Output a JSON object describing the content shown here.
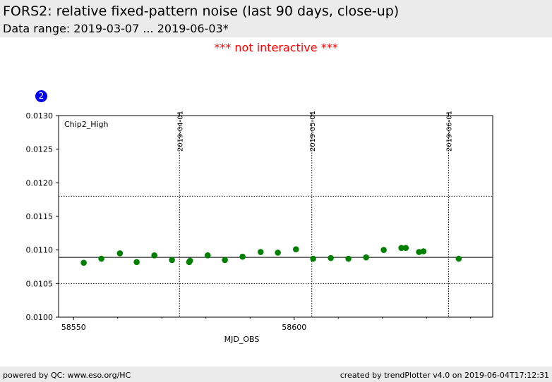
{
  "header": {
    "title": "FORS2: relative fixed-pattern noise (last 90 days, close-up)",
    "subtitle": "Data range: 2019-03-07 ... 2019-06-03*"
  },
  "notice": "*** not interactive ***",
  "badge": "2",
  "footer": {
    "left": "powered by QC: www.eso.org/HC",
    "right": "created by trendPlotter v4.0 on 2019-06-04T17:12:31"
  },
  "colors": {
    "points": "#008000",
    "badge": "#0000ee",
    "notice": "#ff0000"
  },
  "chart_data": {
    "type": "scatter",
    "panel_label": "Chip2_High",
    "xlabel": "MJD_OBS",
    "ylabel": "",
    "xlim": [
      58546.6,
      58645.0
    ],
    "ylim": [
      0.01,
      0.013
    ],
    "x_ticks": [
      58550,
      58600
    ],
    "y_ticks": [
      0.01,
      0.0105,
      0.011,
      0.0115,
      0.012,
      0.0125,
      0.013
    ],
    "y_tick_labels": [
      "0.0100",
      "0.0105",
      "0.0110",
      "0.0115",
      "0.0120",
      "0.0125",
      "0.0130"
    ],
    "date_markers": [
      {
        "x": 58574.0,
        "label": "2019-04-01"
      },
      {
        "x": 58604.0,
        "label": "2019-05-01"
      },
      {
        "x": 58635.0,
        "label": "2019-06-01"
      }
    ],
    "reference_lines": [
      {
        "y": 0.01089,
        "style": "solid"
      },
      {
        "y": 0.0118,
        "style": "dotted"
      },
      {
        "y": 0.0105,
        "style": "dotted"
      }
    ],
    "grid": false,
    "series": [
      {
        "x": [
          58552.3,
          58556.3,
          58560.5,
          58564.3,
          58568.3,
          58572.3,
          58576.2,
          58576.4,
          58580.4,
          58584.3,
          58588.3,
          58592.4,
          58596.3,
          58600.4,
          58604.3,
          58608.3,
          58612.3,
          58616.3,
          58620.3,
          58624.3,
          58625.3,
          58628.3,
          58629.3,
          58637.3
        ],
        "y": [
          0.01081,
          0.01087,
          0.01095,
          0.01082,
          0.01092,
          0.01085,
          0.01082,
          0.01084,
          0.01092,
          0.01085,
          0.0109,
          0.01097,
          0.01096,
          0.01101,
          0.01087,
          0.01088,
          0.01087,
          0.01089,
          0.011,
          0.01103,
          0.01103,
          0.01097,
          0.01098,
          0.01087
        ]
      }
    ]
  }
}
